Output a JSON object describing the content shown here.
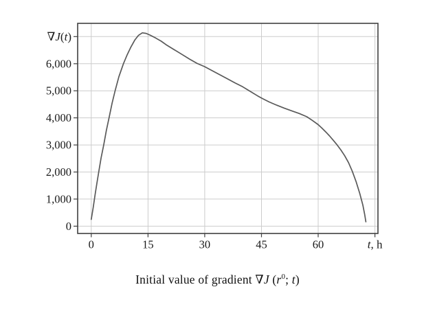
{
  "figure": {
    "background": "#ffffff"
  },
  "colors": {
    "curve": "#595959",
    "grid": "#cccccc",
    "axis": "#3f3f3f",
    "text": "#1a1a1a",
    "background": "#ffffff"
  },
  "caption": {
    "plain_text": "Initial value of gradient ∇J (r0; t)",
    "segments": [
      {
        "text": "Initial value of gradient ∇",
        "italic": false,
        "sup": false
      },
      {
        "text": "J",
        "italic": true,
        "sup": false
      },
      {
        "text": " (",
        "italic": false,
        "sup": false
      },
      {
        "text": "r",
        "italic": true,
        "sup": false
      },
      {
        "text": "0",
        "italic": false,
        "sup": true
      },
      {
        "text": "; ",
        "italic": false,
        "sup": false
      },
      {
        "text": "t",
        "italic": true,
        "sup": false
      },
      {
        "text": ")",
        "italic": false,
        "sup": false
      }
    ]
  },
  "chart_data": {
    "type": "line",
    "title": "Initial value of gradient ∇J (r0; t)",
    "ylabel_plain": "∇J(t)",
    "xlabel_plain": "t, h",
    "ylabel_segments": [
      {
        "text": "∇",
        "italic": false
      },
      {
        "text": "J",
        "italic": true
      },
      {
        "text": "(",
        "italic": false
      },
      {
        "text": "t",
        "italic": true
      },
      {
        "text": ")",
        "italic": false
      }
    ],
    "xlabel_segments": [
      {
        "text": "t",
        "italic": true
      },
      {
        "text": ", h",
        "italic": false
      }
    ],
    "grid": true,
    "legend": "none",
    "xlim": [
      -3.6,
      75.8
    ],
    "ylim": [
      -270,
      7490
    ],
    "x_ticks": [
      {
        "value": 0,
        "label": "0"
      },
      {
        "value": 15,
        "label": "15"
      },
      {
        "value": 30,
        "label": "30"
      },
      {
        "value": 45,
        "label": "45"
      },
      {
        "value": 60,
        "label": "60"
      },
      {
        "value": 75,
        "label": "",
        "axis_title_here": true
      }
    ],
    "y_ticks": [
      {
        "value": 0,
        "label": "0"
      },
      {
        "value": 1000,
        "label": "1,000"
      },
      {
        "value": 2000,
        "label": "2,000"
      },
      {
        "value": 3000,
        "label": "3,000"
      },
      {
        "value": 4000,
        "label": "4,000"
      },
      {
        "value": 5000,
        "label": "5,000"
      },
      {
        "value": 6000,
        "label": "6,000"
      },
      {
        "value": 7000,
        "label": "",
        "axis_title_here": true
      }
    ],
    "series": [
      {
        "name": "initial-gradient-curve",
        "color": "#595959",
        "points": [
          [
            0,
            250
          ],
          [
            0.5,
            680
          ],
          [
            1,
            1150
          ],
          [
            1.5,
            1600
          ],
          [
            2,
            2020
          ],
          [
            2.6,
            2520
          ],
          [
            3.3,
            3010
          ],
          [
            4,
            3540
          ],
          [
            4.7,
            4000
          ],
          [
            5.5,
            4540
          ],
          [
            6.3,
            5000
          ],
          [
            7.3,
            5520
          ],
          [
            8.5,
            6000
          ],
          [
            9.5,
            6330
          ],
          [
            10.5,
            6620
          ],
          [
            11.5,
            6870
          ],
          [
            12.5,
            7050
          ],
          [
            13.5,
            7140
          ],
          [
            14.5,
            7120
          ],
          [
            15.5,
            7060
          ],
          [
            17,
            6950
          ],
          [
            18.5,
            6830
          ],
          [
            20,
            6680
          ],
          [
            22,
            6510
          ],
          [
            24,
            6340
          ],
          [
            26,
            6170
          ],
          [
            28,
            6010
          ],
          [
            30,
            5890
          ],
          [
            32,
            5740
          ],
          [
            34,
            5590
          ],
          [
            36,
            5440
          ],
          [
            38,
            5290
          ],
          [
            40,
            5150
          ],
          [
            42,
            4980
          ],
          [
            44,
            4810
          ],
          [
            45,
            4730
          ],
          [
            47,
            4590
          ],
          [
            49,
            4470
          ],
          [
            51,
            4360
          ],
          [
            53,
            4260
          ],
          [
            55,
            4160
          ],
          [
            57,
            4040
          ],
          [
            58.5,
            3900
          ],
          [
            60,
            3750
          ],
          [
            61,
            3620
          ],
          [
            62,
            3480
          ],
          [
            63,
            3330
          ],
          [
            64,
            3170
          ],
          [
            65,
            3000
          ],
          [
            66,
            2810
          ],
          [
            67,
            2600
          ],
          [
            68,
            2350
          ],
          [
            69,
            2030
          ],
          [
            70,
            1650
          ],
          [
            71,
            1200
          ],
          [
            71.8,
            780
          ],
          [
            72.3,
            430
          ],
          [
            72.6,
            160
          ]
        ]
      }
    ]
  }
}
